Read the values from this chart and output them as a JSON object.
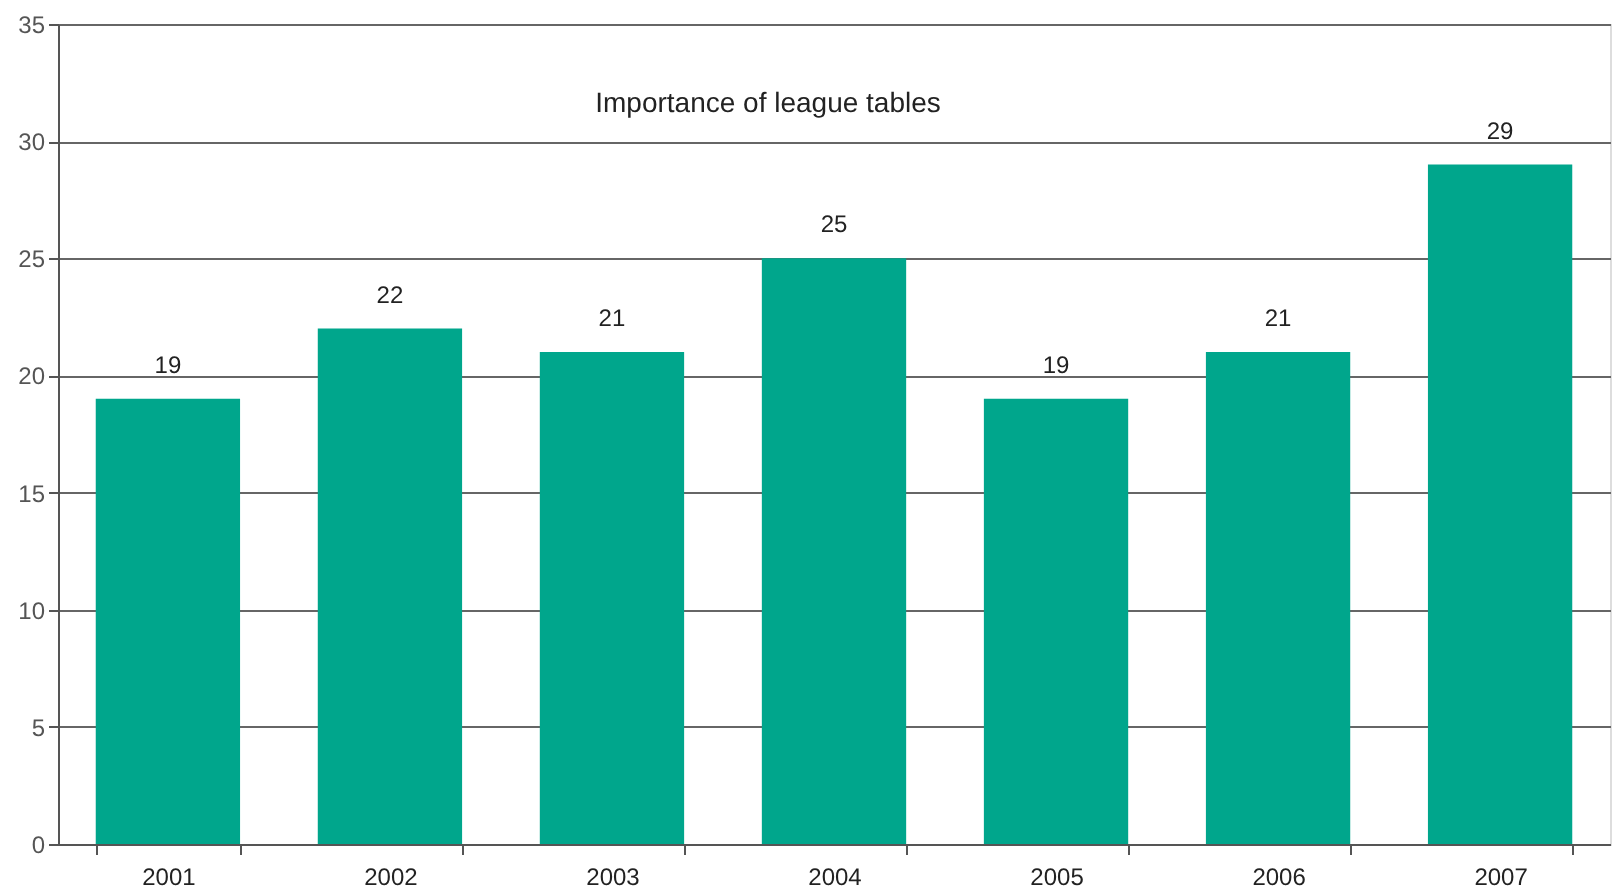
{
  "chart_data": {
    "type": "bar",
    "title": "Importance of league tables",
    "categories": [
      "2001",
      "2002",
      "2003",
      "2004",
      "2005",
      "2006",
      "2007"
    ],
    "values": [
      19,
      22,
      21,
      25,
      19,
      21,
      29
    ],
    "color": "#00a68c",
    "ylim": [
      0,
      35
    ],
    "yticks": [
      0,
      5,
      10,
      15,
      20,
      25,
      30,
      35
    ],
    "grid": "y",
    "data_labels": true
  }
}
